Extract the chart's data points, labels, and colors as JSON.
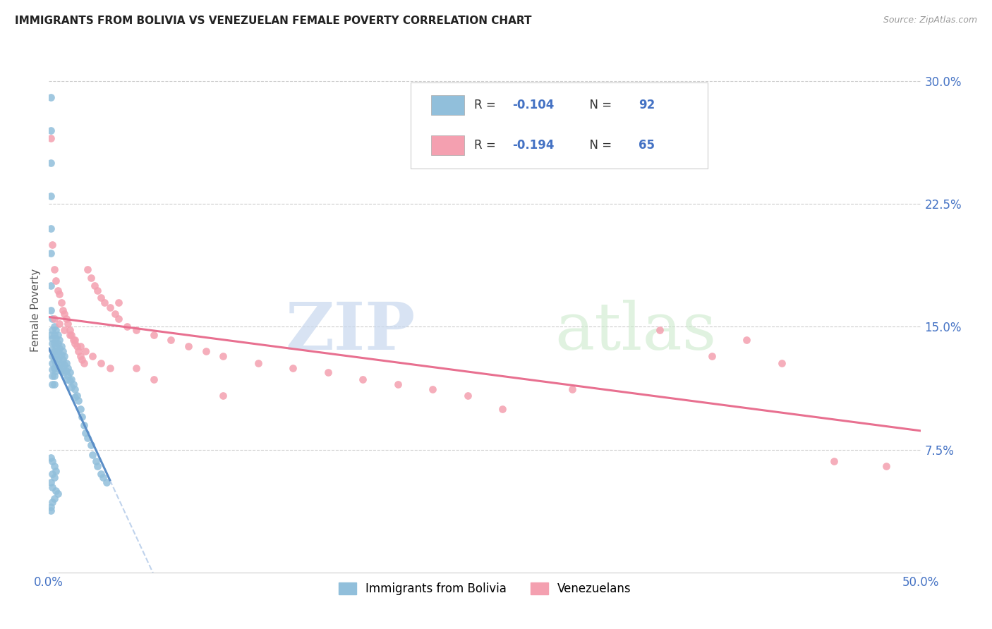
{
  "title": "IMMIGRANTS FROM BOLIVIA VS VENEZUELAN FEMALE POVERTY CORRELATION CHART",
  "source": "Source: ZipAtlas.com",
  "ylabel": "Female Poverty",
  "x_min": 0.0,
  "x_max": 0.5,
  "y_min": 0.0,
  "y_max": 0.32,
  "y_ticks": [
    0.075,
    0.15,
    0.225,
    0.3
  ],
  "y_tick_labels": [
    "7.5%",
    "15.0%",
    "22.5%",
    "30.0%"
  ],
  "bolivia_color": "#91bfdb",
  "venezuela_color": "#f4a0b0",
  "trend_bolivia_color": "#5b8ec7",
  "trend_venezuela_color": "#e87090",
  "trend_dashed_color": "#b0c8e8",
  "bolivia_R": -0.104,
  "bolivia_N": 92,
  "venezuela_R": -0.194,
  "venezuela_N": 65,
  "legend_label_bolivia": "Immigrants from Bolivia",
  "legend_label_venezuela": "Venezuelans",
  "bolivia_x": [
    0.001,
    0.001,
    0.001,
    0.001,
    0.001,
    0.001,
    0.001,
    0.001,
    0.001,
    0.002,
    0.002,
    0.002,
    0.002,
    0.002,
    0.002,
    0.002,
    0.002,
    0.002,
    0.002,
    0.003,
    0.003,
    0.003,
    0.003,
    0.003,
    0.003,
    0.003,
    0.003,
    0.004,
    0.004,
    0.004,
    0.004,
    0.004,
    0.004,
    0.005,
    0.005,
    0.005,
    0.005,
    0.005,
    0.006,
    0.006,
    0.006,
    0.006,
    0.007,
    0.007,
    0.007,
    0.007,
    0.008,
    0.008,
    0.008,
    0.009,
    0.009,
    0.009,
    0.01,
    0.01,
    0.01,
    0.011,
    0.011,
    0.012,
    0.012,
    0.013,
    0.013,
    0.014,
    0.015,
    0.015,
    0.016,
    0.017,
    0.018,
    0.019,
    0.02,
    0.021,
    0.022,
    0.024,
    0.025,
    0.027,
    0.028,
    0.03,
    0.031,
    0.033,
    0.001,
    0.002,
    0.003,
    0.004,
    0.002,
    0.003,
    0.001,
    0.002,
    0.004,
    0.005,
    0.003,
    0.002,
    0.001,
    0.001
  ],
  "bolivia_y": [
    0.29,
    0.27,
    0.25,
    0.23,
    0.21,
    0.195,
    0.175,
    0.16,
    0.145,
    0.155,
    0.148,
    0.143,
    0.14,
    0.136,
    0.132,
    0.128,
    0.124,
    0.12,
    0.115,
    0.15,
    0.145,
    0.14,
    0.135,
    0.13,
    0.125,
    0.12,
    0.115,
    0.148,
    0.143,
    0.138,
    0.133,
    0.128,
    0.123,
    0.145,
    0.14,
    0.135,
    0.13,
    0.125,
    0.142,
    0.137,
    0.132,
    0.127,
    0.138,
    0.133,
    0.128,
    0.123,
    0.135,
    0.13,
    0.125,
    0.132,
    0.127,
    0.122,
    0.128,
    0.123,
    0.118,
    0.125,
    0.12,
    0.122,
    0.117,
    0.118,
    0.113,
    0.115,
    0.112,
    0.107,
    0.108,
    0.105,
    0.1,
    0.095,
    0.09,
    0.085,
    0.082,
    0.078,
    0.072,
    0.068,
    0.065,
    0.06,
    0.058,
    0.055,
    0.07,
    0.068,
    0.065,
    0.062,
    0.06,
    0.058,
    0.055,
    0.052,
    0.05,
    0.048,
    0.045,
    0.043,
    0.04,
    0.038
  ],
  "venezuela_x": [
    0.001,
    0.002,
    0.003,
    0.004,
    0.005,
    0.006,
    0.007,
    0.008,
    0.009,
    0.01,
    0.011,
    0.012,
    0.013,
    0.014,
    0.015,
    0.016,
    0.017,
    0.018,
    0.019,
    0.02,
    0.022,
    0.024,
    0.026,
    0.028,
    0.03,
    0.032,
    0.035,
    0.038,
    0.04,
    0.045,
    0.05,
    0.06,
    0.07,
    0.08,
    0.09,
    0.1,
    0.12,
    0.14,
    0.16,
    0.18,
    0.2,
    0.22,
    0.24,
    0.003,
    0.006,
    0.009,
    0.012,
    0.015,
    0.018,
    0.021,
    0.025,
    0.03,
    0.035,
    0.04,
    0.05,
    0.06,
    0.35,
    0.38,
    0.4,
    0.42,
    0.3,
    0.26,
    0.45,
    0.48,
    0.1
  ],
  "venezuela_y": [
    0.265,
    0.2,
    0.185,
    0.178,
    0.172,
    0.17,
    0.165,
    0.16,
    0.158,
    0.155,
    0.152,
    0.148,
    0.145,
    0.142,
    0.14,
    0.138,
    0.135,
    0.132,
    0.13,
    0.128,
    0.185,
    0.18,
    0.175,
    0.172,
    0.168,
    0.165,
    0.162,
    0.158,
    0.155,
    0.15,
    0.148,
    0.145,
    0.142,
    0.138,
    0.135,
    0.132,
    0.128,
    0.125,
    0.122,
    0.118,
    0.115,
    0.112,
    0.108,
    0.155,
    0.152,
    0.148,
    0.145,
    0.142,
    0.138,
    0.135,
    0.132,
    0.128,
    0.125,
    0.165,
    0.125,
    0.118,
    0.148,
    0.132,
    0.142,
    0.128,
    0.112,
    0.1,
    0.068,
    0.065,
    0.108
  ]
}
